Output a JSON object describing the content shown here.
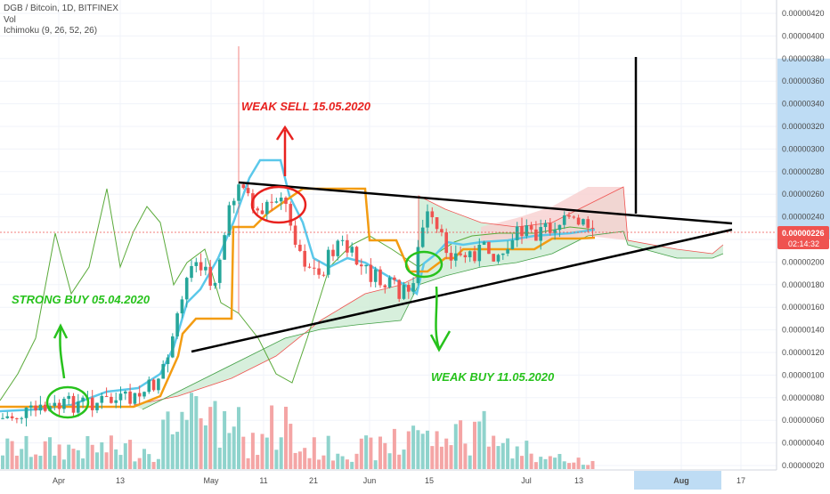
{
  "chart_data": {
    "type": "candlestick",
    "symbol_header": "DGB / Bitcoin, 1D, BITFINEX",
    "indicators": [
      "Vol",
      "Ichimoku (9, 26, 52, 26)"
    ],
    "y_axis": {
      "range": [
        1.5e-07,
        4.42e-06
      ],
      "ticks": [
        "0.00000420",
        "0.00000400",
        "0.00000380",
        "0.00000360",
        "0.00000340",
        "0.00000320",
        "0.00000300",
        "0.00000280",
        "0.00000260",
        "0.00000240",
        "0.00000220",
        "0.00000200",
        "0.00000180",
        "0.00000160",
        "0.00000140",
        "0.00000120",
        "0.00000100",
        "0.00000080",
        "0.00000060",
        "0.00000040",
        "0.00000020"
      ],
      "highlight_band": [
        2.2e-06,
        3.8e-06
      ]
    },
    "x_axis": {
      "ticks": [
        "Apr",
        "13",
        "May",
        "11",
        "21",
        "Jun",
        "15",
        "Jul",
        "13",
        "Aug",
        "17"
      ],
      "highlight_label": "Aug"
    },
    "last_price": {
      "price": "0.00000226",
      "countdown": "02:14:32",
      "value": 2.26e-06
    },
    "annotations": {
      "strong_buy": "STRONG BUY 05.04.2020",
      "weak_sell": "WEAK SELL 15.05.2020",
      "weak_buy": "WEAK BUY 11.05.2020"
    },
    "colors": {
      "up": "#26a69a",
      "down": "#ef5350",
      "volume_up": "#8fd3cc",
      "volume_down": "#f4a5a5",
      "conversion_line": "#5bc8ea",
      "base_line": "#f39c12",
      "lagging_span": "#5aaa3a",
      "cloud_bull": "#cdebd3",
      "cloud_bear": "#f8cfcf",
      "annotation_green": "#27c21c",
      "annotation_red": "#e8221f",
      "axis_highlight": "#bedcf4",
      "price_label": "#ef5350"
    }
  }
}
